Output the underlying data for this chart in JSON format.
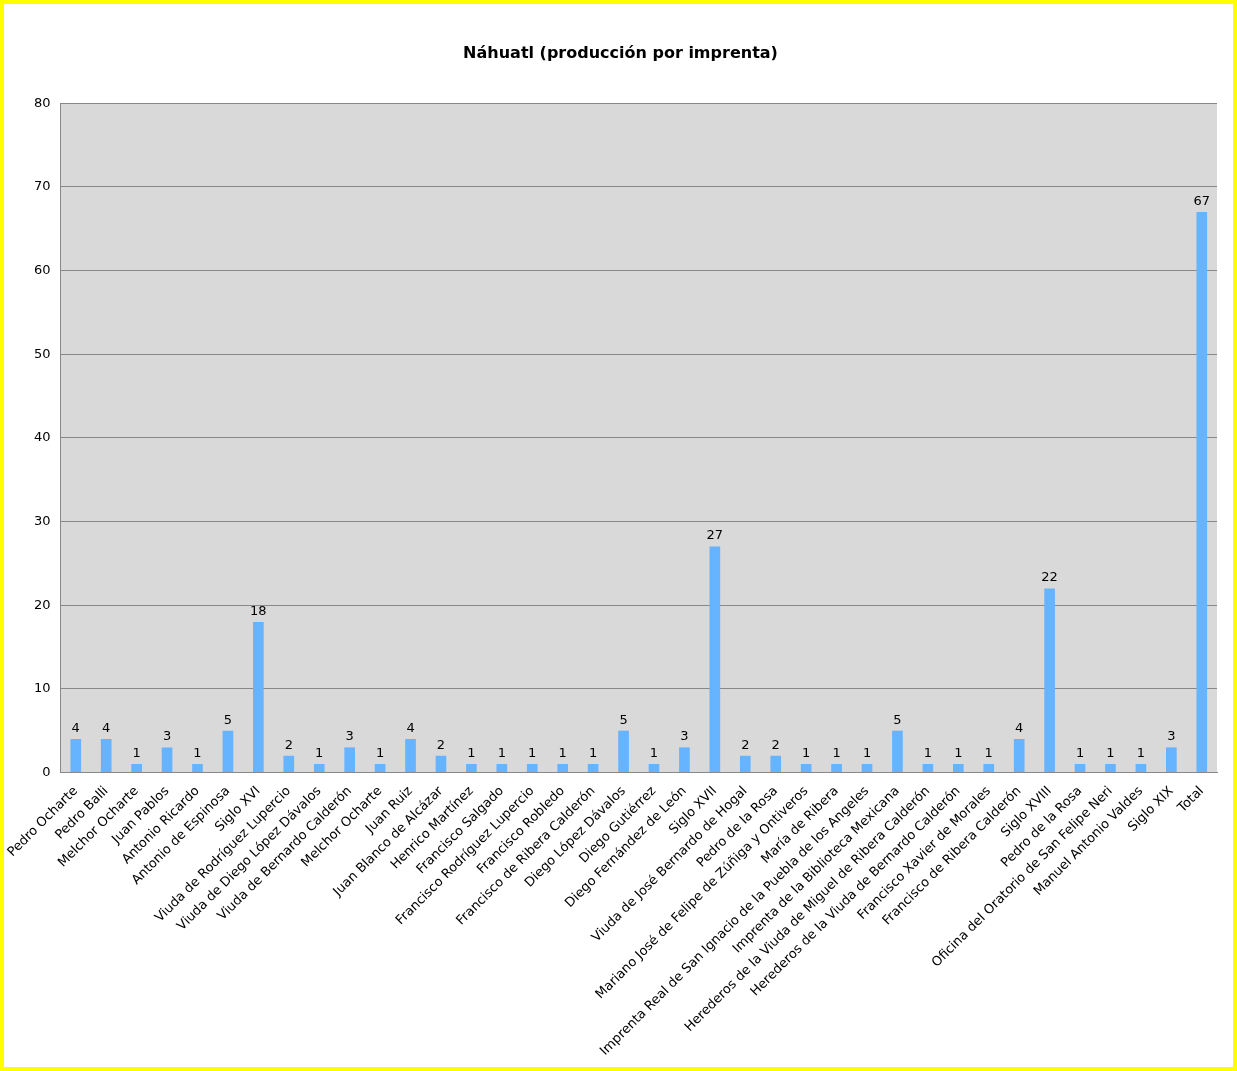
{
  "chart_data": {
    "type": "bar",
    "title": "Náhuatl (producción por imprenta)",
    "categories": [
      "Pedro Ocharte",
      "Pedro Balli",
      "Melchor Ocharte",
      "Juan Pablos",
      "Antonio Ricardo",
      "Antonio de Espinosa",
      "Siglo XVI",
      "Viuda de Rodríguez Lupercio",
      "Viuda de Diego López Dávalos",
      "Viuda de Bernardo Calderón",
      "Melchor Ocharte",
      "Juan Ruiz",
      "Juan Blanco de Alcázar",
      "Henrico Martínez",
      "Francisco Salgado",
      "Francisco Rodríguez Lupercio",
      "Francisco Robledo",
      "Francisco de Ribera Calderón",
      "Diego López Dávalos",
      "Diego Gutiérrez",
      "Diego Fernández de León",
      "Siglo XVII",
      "Viuda de José Bernardo de Hogal",
      "Pedro de la Rosa",
      "Mariano José de Felipe de Zúñiga y Ontiveros",
      "María de Ribera",
      "Imprenta Real de San Ignacio de la Puebla de los Angeles",
      "Imprenta de la Biblioteca Mexicana",
      "Herederos de la Viuda de Miguel de Ribera Calderón",
      "Herederos de la Viuda de Bernardo Calderón",
      "Francisco Xavier de Morales",
      "Francisco de Ribera Calderón",
      "Siglo XVIII",
      "Pedro de la Rosa",
      "Oficina del Oratorio de San Felipe Neri",
      "Manuel Antonio Valdes",
      "Siglo XIX",
      "Total"
    ],
    "values": [
      4,
      4,
      1,
      3,
      1,
      5,
      18,
      2,
      1,
      3,
      1,
      4,
      2,
      1,
      1,
      1,
      1,
      1,
      5,
      1,
      3,
      27,
      2,
      2,
      1,
      1,
      1,
      5,
      1,
      1,
      1,
      4,
      22,
      1,
      1,
      1,
      3,
      67
    ],
    "color": "#66b3ff",
    "ylim": [
      0,
      80
    ],
    "yticks": [
      0,
      10,
      20,
      30,
      40,
      50,
      60,
      70,
      80
    ],
    "grid": "y",
    "data_labels": true,
    "legend": false
  }
}
